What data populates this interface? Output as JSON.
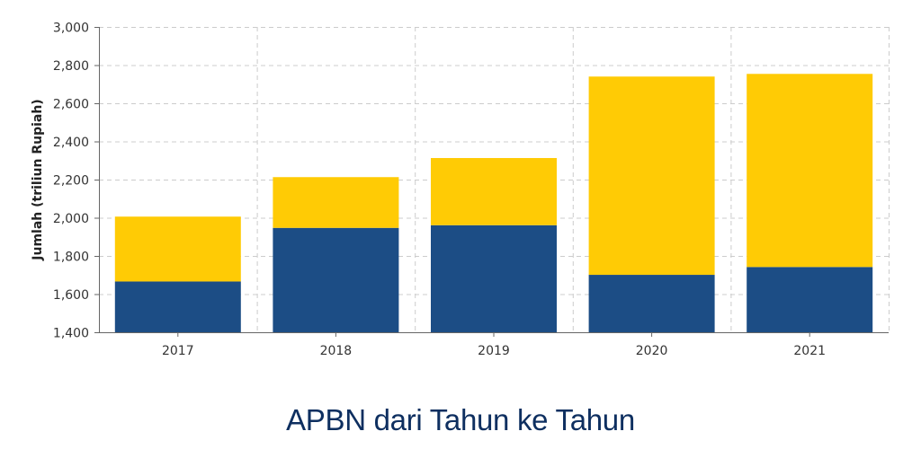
{
  "chart_data": {
    "type": "bar",
    "stacked": true,
    "title": "APBN dari Tahun ke Tahun",
    "xlabel": "",
    "ylabel": "Jumlah (triliun Rupiah)",
    "categories": [
      "2017",
      "2018",
      "2019",
      "2020",
      "2021"
    ],
    "series": [
      {
        "name": "Bottom segment",
        "color": "#1c4d85",
        "values": [
          1666,
          1947,
          1961,
          1701,
          1742
        ]
      },
      {
        "name": "Top segment",
        "color": "#ffcb05",
        "values": [
          340,
          266,
          352,
          1039,
          1012
        ]
      }
    ],
    "totals": [
      2006,
      2213,
      2313,
      2740,
      2754
    ],
    "ylim": [
      1400,
      3000
    ],
    "yticks": [
      1400,
      1600,
      1800,
      2000,
      2200,
      2400,
      2600,
      2800,
      3000
    ],
    "ytick_labels": [
      "1,400",
      "1,600",
      "1,800",
      "2,000",
      "2,200",
      "2,400",
      "2,600",
      "2,800",
      "3,000"
    ],
    "grid": true,
    "legend": "none"
  },
  "colors": {
    "title": "#0e2f60",
    "grid": "#cccccc",
    "axis": "#666666",
    "tick_text": "#333333"
  }
}
